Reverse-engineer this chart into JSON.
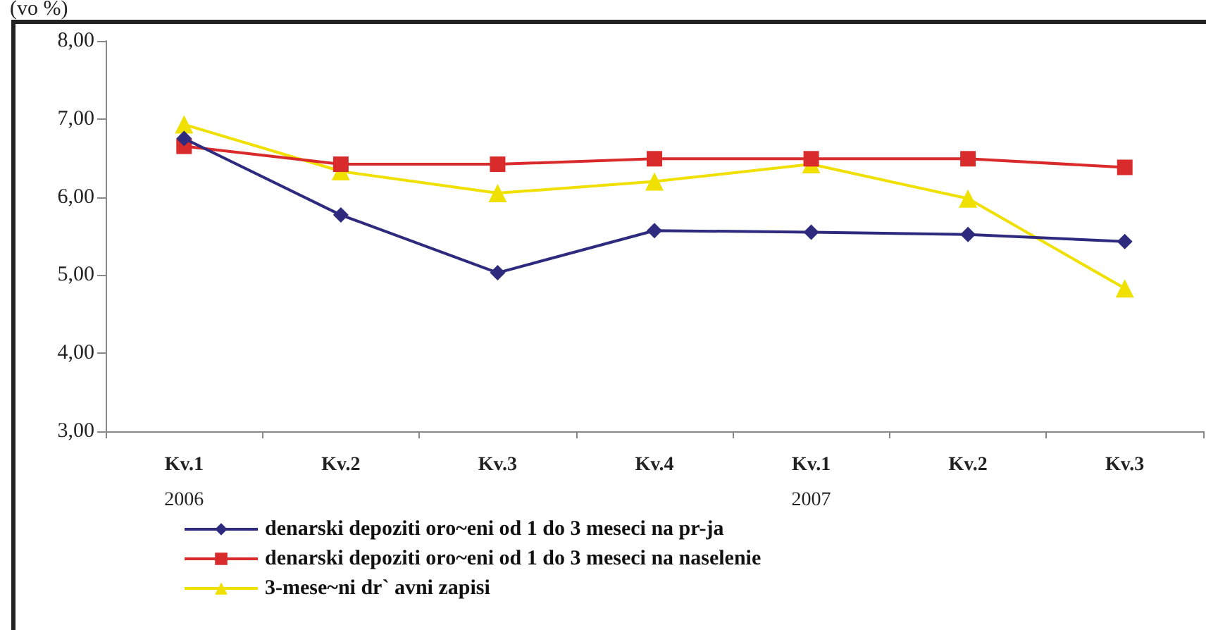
{
  "chart_data": {
    "type": "line",
    "ylabel": "(vo %)",
    "categories": [
      "Kv.1\n2006",
      "Kv.2",
      "Kv.3",
      "Kv.4",
      "Kv.1\n2007",
      "Kv.2",
      "Kv.3"
    ],
    "series": [
      {
        "name": "denarski depoziti oro~eni od 1 do 3 meseci na pr-ja",
        "color": "#2e2a7e",
        "marker": "diamond",
        "values": [
          6.75,
          5.77,
          5.03,
          5.57,
          5.55,
          5.52,
          5.43
        ]
      },
      {
        "name": "denarski depoziti oro~eni od 1 do 3 meseci na naselenie",
        "color": "#d92b2b",
        "marker": "square",
        "values": [
          6.65,
          6.42,
          6.42,
          6.49,
          6.49,
          6.49,
          6.38
        ]
      },
      {
        "name": "3-mese~ni dr` avni zapisi",
        "color": "#f0e000",
        "marker": "triangle",
        "values": [
          6.93,
          6.33,
          6.05,
          6.2,
          6.42,
          5.98,
          4.83
        ]
      }
    ],
    "ylim": [
      3,
      8
    ],
    "yticks": [
      {
        "value": 3,
        "label": "3,00"
      },
      {
        "value": 4,
        "label": "4,00"
      },
      {
        "value": 5,
        "label": "5,00"
      },
      {
        "value": 6,
        "label": "6,00"
      },
      {
        "value": 7,
        "label": "7,00"
      },
      {
        "value": 8,
        "label": "8,00"
      }
    ],
    "grid": false,
    "legend": "bottom",
    "line_style": "solid"
  }
}
